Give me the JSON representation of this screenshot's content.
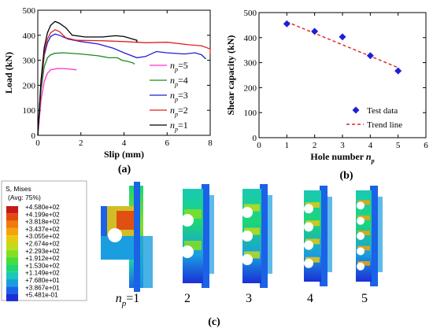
{
  "panels": {
    "a_label": "(a)",
    "b_label": "(b)",
    "c_label": "(c)"
  },
  "chart_data": [
    {
      "type": "line",
      "xlabel": "Slip (mm)",
      "ylabel": "Load (kN)",
      "xlim": [
        0,
        8
      ],
      "ylim": [
        0,
        500
      ],
      "xticks": [
        "0",
        "2",
        "4",
        "6",
        "8"
      ],
      "yticks": [
        "0",
        "100",
        "200",
        "300",
        "400",
        "500"
      ],
      "legend_position": "bottom-right",
      "series": [
        {
          "name": "n_p=5",
          "legend_main": "n",
          "legend_sub": "p",
          "legend_tail": "=5",
          "color": "#ff33cc",
          "points": [
            [
              0,
              0
            ],
            [
              0.15,
              140
            ],
            [
              0.3,
              215
            ],
            [
              0.45,
              248
            ],
            [
              0.6,
              262
            ],
            [
              0.9,
              267
            ],
            [
              1.3,
              266
            ],
            [
              1.8,
              262
            ]
          ]
        },
        {
          "name": "n_p=4",
          "legend_main": "n",
          "legend_sub": "p",
          "legend_tail": "=4",
          "color": "#1a8a1a",
          "points": [
            [
              0,
              0
            ],
            [
              0.15,
              180
            ],
            [
              0.3,
              275
            ],
            [
              0.45,
              310
            ],
            [
              0.6,
              322
            ],
            [
              0.8,
              328
            ],
            [
              1.2,
              330
            ],
            [
              2.0,
              325
            ],
            [
              2.8,
              318
            ],
            [
              3.3,
              310
            ],
            [
              3.7,
              310
            ],
            [
              3.9,
              300
            ],
            [
              4.2,
              295
            ],
            [
              4.4,
              290
            ],
            [
              4.5,
              285
            ]
          ]
        },
        {
          "name": "n_p=3",
          "legend_main": "n",
          "legend_sub": "p",
          "legend_tail": "=3",
          "color": "#1f1fd6",
          "points": [
            [
              0,
              0
            ],
            [
              0.15,
              200
            ],
            [
              0.3,
              320
            ],
            [
              0.45,
              370
            ],
            [
              0.6,
              395
            ],
            [
              0.8,
              405
            ],
            [
              1.0,
              400
            ],
            [
              1.4,
              385
            ],
            [
              2.0,
              375
            ],
            [
              2.8,
              365
            ],
            [
              3.5,
              348
            ],
            [
              4.0,
              330
            ],
            [
              4.6,
              310
            ],
            [
              5.0,
              315
            ],
            [
              5.5,
              335
            ],
            [
              6.0,
              330
            ],
            [
              6.8,
              325
            ],
            [
              7.3,
              330
            ],
            [
              7.6,
              322
            ],
            [
              7.8,
              305
            ]
          ]
        },
        {
          "name": "n_p=2",
          "legend_main": "n",
          "legend_sub": "p",
          "legend_tail": "=2",
          "color": "#e02020",
          "points": [
            [
              0,
              0
            ],
            [
              0.15,
              210
            ],
            [
              0.3,
              330
            ],
            [
              0.45,
              385
            ],
            [
              0.6,
              410
            ],
            [
              0.8,
              422
            ],
            [
              1.0,
              415
            ],
            [
              1.3,
              390
            ],
            [
              1.8,
              380
            ],
            [
              3.0,
              378
            ],
            [
              4.0,
              375
            ],
            [
              5.0,
              370
            ],
            [
              6.0,
              372
            ],
            [
              7.0,
              362
            ],
            [
              7.6,
              358
            ],
            [
              8.0,
              345
            ],
            [
              8.0,
              325
            ]
          ]
        },
        {
          "name": "n_p=1",
          "legend_main": "n",
          "legend_sub": "p",
          "legend_tail": "=1",
          "color": "#000000",
          "points": [
            [
              0,
              0
            ],
            [
              0.15,
              220
            ],
            [
              0.3,
              350
            ],
            [
              0.45,
              410
            ],
            [
              0.6,
              440
            ],
            [
              0.8,
              455
            ],
            [
              1.0,
              448
            ],
            [
              1.3,
              430
            ],
            [
              1.6,
              400
            ],
            [
              2.2,
              393
            ],
            [
              3.0,
              393
            ],
            [
              3.6,
              398
            ],
            [
              4.0,
              395
            ],
            [
              4.4,
              385
            ],
            [
              4.6,
              380
            ],
            [
              4.6,
              372
            ]
          ]
        }
      ]
    },
    {
      "type": "scatter",
      "xlabel_main": "Hole number ",
      "xlabel_var": "n",
      "xlabel_sub": "p",
      "ylabel": "Shear capacity (kN)",
      "xlim": [
        0,
        6
      ],
      "ylim": [
        0,
        500
      ],
      "xticks": [
        "0",
        "1",
        "2",
        "3",
        "4",
        "5",
        "6"
      ],
      "yticks": [
        "0",
        "100",
        "200",
        "300",
        "400",
        "500"
      ],
      "legend_position": "bottom-right",
      "series": [
        {
          "name": "Test data",
          "color": "#1f1fd6",
          "x": [
            1,
            2,
            3,
            4,
            5
          ],
          "y": [
            455,
            425,
            403,
            328,
            267
          ]
        },
        {
          "name": "Trend line",
          "color": "#e02020",
          "style": "dashed",
          "x": [
            1,
            5
          ],
          "y": [
            463,
            280
          ]
        }
      ]
    }
  ],
  "contour": {
    "legend_title_1": "S, Mises",
    "legend_title_2": "(Avg: 75%)",
    "levels": [
      "+4.580e+02",
      "+4.199e+02",
      "+3.818e+02",
      "+3.437e+02",
      "+3.055e+02",
      "+2.674e+02",
      "+2.293e+02",
      "+1.912e+02",
      "+1.530e+02",
      "+1.149e+02",
      "+7.680e+01",
      "+3.867e+01",
      "+5.481e-01"
    ],
    "level_colors": [
      "#c61a1a",
      "#e24a12",
      "#f07a0c",
      "#f4a30c",
      "#e8c812",
      "#bedd18",
      "#86de22",
      "#46dc3a",
      "#1cd677",
      "#19c9b4",
      "#1a9ee0",
      "#1b62e6",
      "#1a2fd6"
    ],
    "models": [
      {
        "label_main": "n",
        "label_sub": "p",
        "label_tail": "=1",
        "holes": 1
      },
      {
        "label_main": "",
        "label_sub": "",
        "label_tail": "2",
        "holes": 2
      },
      {
        "label_main": "",
        "label_sub": "",
        "label_tail": "3",
        "holes": 3
      },
      {
        "label_main": "",
        "label_sub": "",
        "label_tail": "4",
        "holes": 4
      },
      {
        "label_main": "",
        "label_sub": "",
        "label_tail": "5",
        "holes": 5
      }
    ]
  }
}
